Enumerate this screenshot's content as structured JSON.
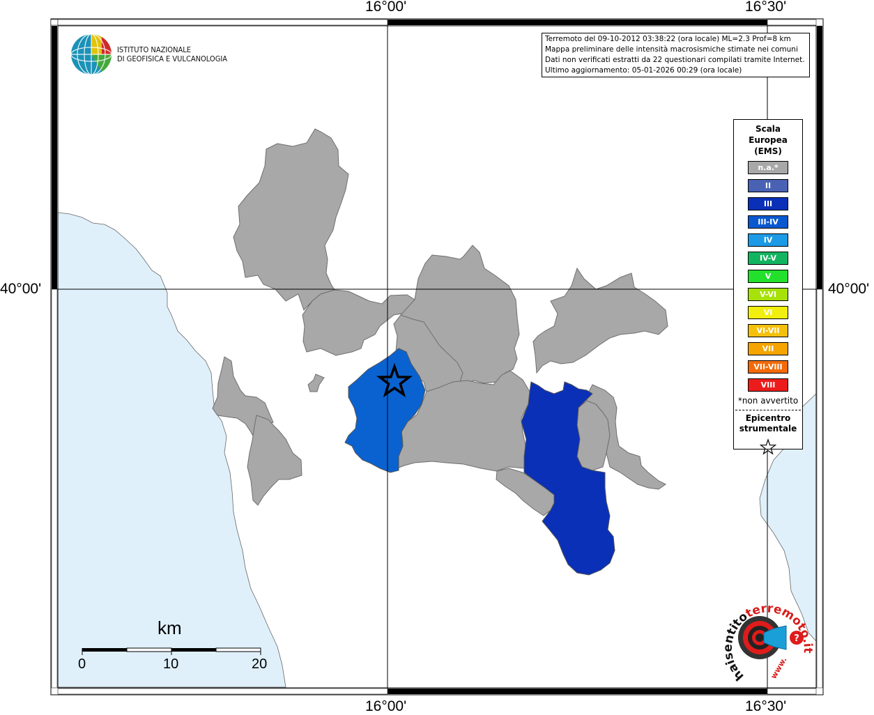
{
  "coords": {
    "top_lon_left": "16°00'",
    "top_lon_right": "16°30'",
    "bottom_lon_left": "16°00'",
    "bottom_lon_right": "16°30'",
    "lat_left": "40°00'",
    "lat_right": "40°00'"
  },
  "logo": {
    "line1": "ISTITUTO NAZIONALE",
    "line2": "DI GEOFISICA E VULCANOLOGIA"
  },
  "info": {
    "line1": "Terremoto del 09-10-2012 03:38:22 (ora locale) ML=2.3 Prof=8 km",
    "line2": "Mappa preliminare delle intensità macrosismiche stimate nei comuni",
    "line3": "Dati non verificati estratti da 22 questionari compilati tramite Internet.",
    "line4": "Ultimo aggiornamento: 05-01-2026 00:29 (ora locale)"
  },
  "legend": {
    "title1": "Scala",
    "title2": "Europea",
    "title3": "(EMS)",
    "items": [
      {
        "label": "n.a.*",
        "color": "#a8a8a8"
      },
      {
        "label": "II",
        "color": "#4a62b4"
      },
      {
        "label": "III",
        "color": "#0a30b8"
      },
      {
        "label": "III-IV",
        "color": "#0a58d0"
      },
      {
        "label": "IV",
        "color": "#1c9ae6"
      },
      {
        "label": "IV-V",
        "color": "#12b460"
      },
      {
        "label": "V",
        "color": "#22e02c"
      },
      {
        "label": "V-VI",
        "color": "#a6e10a"
      },
      {
        "label": "VI",
        "color": "#f2ee0e"
      },
      {
        "label": "VI-VII",
        "color": "#f4c00c"
      },
      {
        "label": "VII",
        "color": "#f5a400"
      },
      {
        "label": "VII-VIII",
        "color": "#f26a0a"
      },
      {
        "label": "VIII",
        "color": "#ec1c1c"
      }
    ],
    "note": "*non avvertito",
    "epi1": "Epicentro",
    "epi2": "strumentale"
  },
  "scale": {
    "title": "km",
    "labels": [
      "0",
      "10",
      "20"
    ]
  },
  "badge": {
    "text_black": "haisentito",
    "text_red": "terremoto.it",
    "text_www": "www."
  },
  "colors": {
    "sea": "#e0f0fa",
    "na": "#a8a8a8",
    "intensity_III": "#0a30b8",
    "intensity_III_IV": "#0a58d0"
  }
}
